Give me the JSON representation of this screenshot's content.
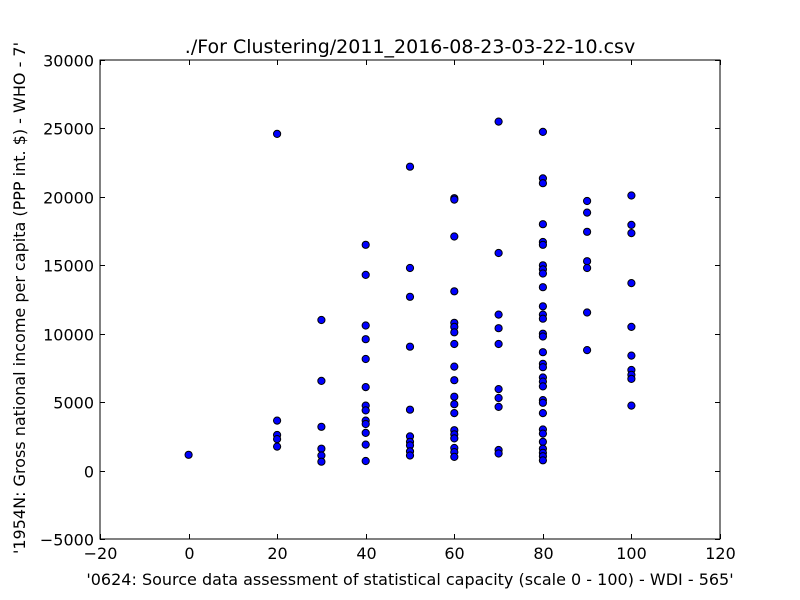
{
  "chart_data": {
    "type": "scatter",
    "title": "./For Clustering/2011_2016-08-23-03-22-10.csv",
    "xlabel": "'0624: Source data assessment of statistical capacity  (scale 0 - 100) - WDI - 565'",
    "ylabel": "'1954N: Gross national income per capita (PPP int. $) - WHO - 7'",
    "xlim": [
      -20,
      120
    ],
    "ylim": [
      -5000,
      30000
    ],
    "xticks": [
      -20,
      0,
      20,
      40,
      60,
      80,
      100,
      120
    ],
    "yticks": [
      -5000,
      0,
      5000,
      10000,
      15000,
      20000,
      25000,
      30000
    ],
    "xtick_labels": [
      "−20",
      "0",
      "20",
      "40",
      "60",
      "80",
      "100",
      "120"
    ],
    "ytick_labels": [
      "−5000",
      "0",
      "5000",
      "10000",
      "15000",
      "20000",
      "25000",
      "30000"
    ],
    "grid": false,
    "marker_color": "#0000ff",
    "points": [
      [
        0,
        1150
      ],
      [
        20,
        24600
      ],
      [
        20,
        3650
      ],
      [
        20,
        2600
      ],
      [
        20,
        2300
      ],
      [
        20,
        1750
      ],
      [
        30,
        11000
      ],
      [
        30,
        6550
      ],
      [
        30,
        3200
      ],
      [
        30,
        1600
      ],
      [
        30,
        1100
      ],
      [
        30,
        650
      ],
      [
        40,
        16500
      ],
      [
        40,
        14300
      ],
      [
        40,
        10600
      ],
      [
        40,
        9600
      ],
      [
        40,
        8150
      ],
      [
        40,
        6100
      ],
      [
        40,
        4750
      ],
      [
        40,
        4400
      ],
      [
        40,
        3650
      ],
      [
        40,
        3400
      ],
      [
        40,
        2750
      ],
      [
        40,
        1900
      ],
      [
        40,
        700
      ],
      [
        50,
        22200
      ],
      [
        50,
        14800
      ],
      [
        50,
        12700
      ],
      [
        50,
        9050
      ],
      [
        50,
        4450
      ],
      [
        50,
        2500
      ],
      [
        50,
        2100
      ],
      [
        50,
        1850
      ],
      [
        50,
        1400
      ],
      [
        50,
        1100
      ],
      [
        60,
        19900
      ],
      [
        60,
        19800
      ],
      [
        60,
        17100
      ],
      [
        60,
        13100
      ],
      [
        60,
        10800
      ],
      [
        60,
        10500
      ],
      [
        60,
        10100
      ],
      [
        60,
        9250
      ],
      [
        60,
        7600
      ],
      [
        60,
        6600
      ],
      [
        60,
        5400
      ],
      [
        60,
        4850
      ],
      [
        60,
        4200
      ],
      [
        60,
        2950
      ],
      [
        60,
        2650
      ],
      [
        60,
        2350
      ],
      [
        60,
        1650
      ],
      [
        60,
        1350
      ],
      [
        60,
        1000
      ],
      [
        70,
        25500
      ],
      [
        70,
        15900
      ],
      [
        70,
        11400
      ],
      [
        70,
        10400
      ],
      [
        70,
        9250
      ],
      [
        70,
        5950
      ],
      [
        70,
        5300
      ],
      [
        70,
        4650
      ],
      [
        70,
        1500
      ],
      [
        70,
        1250
      ],
      [
        80,
        24750
      ],
      [
        80,
        21350
      ],
      [
        80,
        21000
      ],
      [
        80,
        18000
      ],
      [
        80,
        16700
      ],
      [
        80,
        16500
      ],
      [
        80,
        15000
      ],
      [
        80,
        14700
      ],
      [
        80,
        14400
      ],
      [
        80,
        13400
      ],
      [
        80,
        12000
      ],
      [
        80,
        11400
      ],
      [
        80,
        11100
      ],
      [
        80,
        10000
      ],
      [
        80,
        9800
      ],
      [
        80,
        8650
      ],
      [
        80,
        7800
      ],
      [
        80,
        7550
      ],
      [
        80,
        6800
      ],
      [
        80,
        6500
      ],
      [
        80,
        6150
      ],
      [
        80,
        5150
      ],
      [
        80,
        4950
      ],
      [
        80,
        4200
      ],
      [
        80,
        3000
      ],
      [
        80,
        2700
      ],
      [
        80,
        2100
      ],
      [
        80,
        1600
      ],
      [
        80,
        1300
      ],
      [
        80,
        1050
      ],
      [
        80,
        750
      ],
      [
        90,
        19700
      ],
      [
        90,
        18850
      ],
      [
        90,
        17450
      ],
      [
        90,
        15300
      ],
      [
        90,
        14800
      ],
      [
        90,
        11550
      ],
      [
        90,
        8800
      ],
      [
        100,
        20100
      ],
      [
        100,
        17950
      ],
      [
        100,
        17350
      ],
      [
        100,
        13700
      ],
      [
        100,
        10500
      ],
      [
        100,
        8400
      ],
      [
        100,
        7350
      ],
      [
        100,
        7000
      ],
      [
        100,
        6700
      ],
      [
        100,
        4750
      ]
    ]
  }
}
